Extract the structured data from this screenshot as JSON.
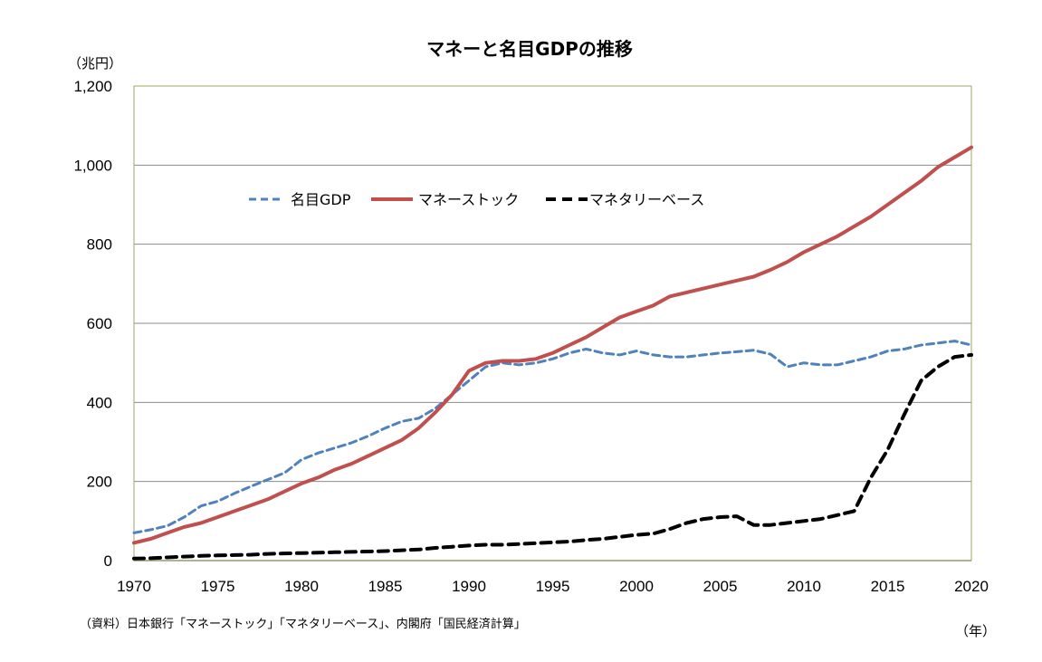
{
  "chart_data": {
    "type": "line",
    "title": "マネーと名目GDPの推移",
    "ylabel": "（兆円）",
    "xlabel": "（年）",
    "source": "（資料）日本銀行「マネーストック」「マネタリーベース」、内閣府「国民経済計算」",
    "xlim": [
      1970,
      2020
    ],
    "ylim": [
      0,
      1200
    ],
    "x_ticks": [
      1970,
      1975,
      1980,
      1985,
      1990,
      1995,
      2000,
      2005,
      2010,
      2015,
      2020
    ],
    "y_ticks": [
      0,
      200,
      400,
      600,
      800,
      1000,
      1200
    ],
    "y_tick_labels": [
      "0",
      "200",
      "400",
      "600",
      "800",
      "1,000",
      "1,200"
    ],
    "grid": "horizontal",
    "legend_position": "upper-left-inside",
    "series": [
      {
        "name": "名目GDP",
        "color": "#4f81bd",
        "style": "dashed",
        "x": [
          1970,
          1971,
          1972,
          1973,
          1974,
          1975,
          1976,
          1977,
          1978,
          1979,
          1980,
          1981,
          1982,
          1983,
          1984,
          1985,
          1986,
          1987,
          1988,
          1989,
          1990,
          1991,
          1992,
          1993,
          1994,
          1995,
          1996,
          1997,
          1998,
          1999,
          2000,
          2001,
          2002,
          2003,
          2004,
          2005,
          2006,
          2007,
          2008,
          2009,
          2010,
          2011,
          2012,
          2013,
          2014,
          2015,
          2016,
          2017,
          2018,
          2019,
          2020
        ],
        "y": [
          70,
          78,
          88,
          110,
          138,
          150,
          170,
          188,
          205,
          222,
          255,
          272,
          285,
          298,
          315,
          335,
          352,
          360,
          385,
          420,
          455,
          490,
          500,
          495,
          500,
          510,
          525,
          535,
          525,
          520,
          530,
          520,
          515,
          515,
          520,
          525,
          528,
          532,
          522,
          490,
          500,
          495,
          495,
          505,
          515,
          530,
          535,
          545,
          550,
          555,
          545
        ]
      },
      {
        "name": "マネーストック",
        "color": "#c0504d",
        "style": "solid",
        "x": [
          1970,
          1971,
          1972,
          1973,
          1974,
          1975,
          1976,
          1977,
          1978,
          1979,
          1980,
          1981,
          1982,
          1983,
          1984,
          1985,
          1986,
          1987,
          1988,
          1989,
          1990,
          1991,
          1992,
          1993,
          1994,
          1995,
          1996,
          1997,
          1998,
          1999,
          2000,
          2001,
          2002,
          2003,
          2004,
          2005,
          2006,
          2007,
          2008,
          2009,
          2010,
          2011,
          2012,
          2013,
          2014,
          2015,
          2016,
          2017,
          2018,
          2019,
          2020
        ],
        "y": [
          45,
          55,
          70,
          85,
          95,
          110,
          125,
          140,
          155,
          175,
          195,
          210,
          230,
          245,
          265,
          285,
          305,
          335,
          375,
          420,
          480,
          500,
          505,
          505,
          510,
          525,
          545,
          565,
          590,
          615,
          630,
          645,
          668,
          678,
          688,
          698,
          708,
          718,
          735,
          755,
          780,
          800,
          820,
          845,
          870,
          900,
          930,
          960,
          995,
          1020,
          1045
        ]
      },
      {
        "name": "マネタリーベース",
        "color": "#000000",
        "style": "dashed",
        "x": [
          1970,
          1971,
          1972,
          1973,
          1974,
          1975,
          1976,
          1977,
          1978,
          1979,
          1980,
          1981,
          1982,
          1983,
          1984,
          1985,
          1986,
          1987,
          1988,
          1989,
          1990,
          1991,
          1992,
          1993,
          1994,
          1995,
          1996,
          1997,
          1998,
          1999,
          2000,
          2001,
          2002,
          2003,
          2004,
          2005,
          2006,
          2007,
          2008,
          2009,
          2010,
          2011,
          2012,
          2013,
          2014,
          2015,
          2016,
          2017,
          2018,
          2019,
          2020
        ],
        "y": [
          5,
          6,
          8,
          10,
          12,
          13,
          14,
          15,
          17,
          18,
          19,
          20,
          21,
          22,
          23,
          24,
          26,
          28,
          32,
          35,
          38,
          40,
          40,
          42,
          44,
          46,
          48,
          52,
          55,
          60,
          65,
          68,
          80,
          95,
          105,
          110,
          112,
          90,
          90,
          95,
          100,
          105,
          115,
          125,
          210,
          280,
          370,
          455,
          490,
          515,
          520
        ]
      }
    ]
  }
}
